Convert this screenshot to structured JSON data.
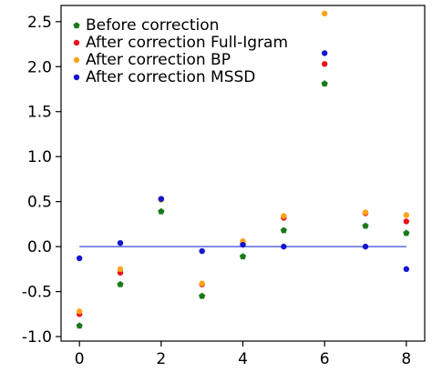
{
  "chart_data": {
    "type": "scatter",
    "title": "",
    "xlabel": "",
    "ylabel": "",
    "xlim": [
      -0.45,
      8.45
    ],
    "ylim": [
      -1.05,
      2.68
    ],
    "xticks": [
      0,
      2,
      4,
      6,
      8
    ],
    "yticks": [
      -1.0,
      -0.5,
      0.0,
      0.5,
      1.0,
      1.5,
      2.0,
      2.5
    ],
    "x": [
      0,
      1,
      2,
      3,
      4,
      5,
      6,
      7,
      8
    ],
    "legend_position": "top-left",
    "grid": false,
    "series": [
      {
        "name": "Before correction",
        "marker": "pentagon",
        "color": "#1a7a1a",
        "values": [
          -0.88,
          -0.42,
          0.39,
          -0.55,
          -0.11,
          0.18,
          1.81,
          0.23,
          0.15
        ]
      },
      {
        "name": "After correction Full-Igram",
        "marker": "circle",
        "color": "#e8141e",
        "values": [
          -0.75,
          -0.29,
          0.53,
          -0.42,
          0.03,
          0.32,
          2.03,
          0.37,
          0.28
        ]
      },
      {
        "name": "After correction BP",
        "marker": "circle",
        "color": "#ffa31a",
        "values": [
          -0.72,
          -0.25,
          0.52,
          -0.41,
          0.06,
          0.34,
          2.59,
          0.38,
          0.35
        ]
      },
      {
        "name": "After correction MSSD",
        "marker": "circle",
        "color": "#1414d2",
        "values": [
          -0.13,
          0.04,
          0.53,
          -0.05,
          0.02,
          0.0,
          2.15,
          0.0,
          -0.25
        ]
      }
    ],
    "reference_line": {
      "y": 0.0,
      "x_range": [
        0,
        8
      ],
      "color": "#3a4ad8"
    }
  }
}
